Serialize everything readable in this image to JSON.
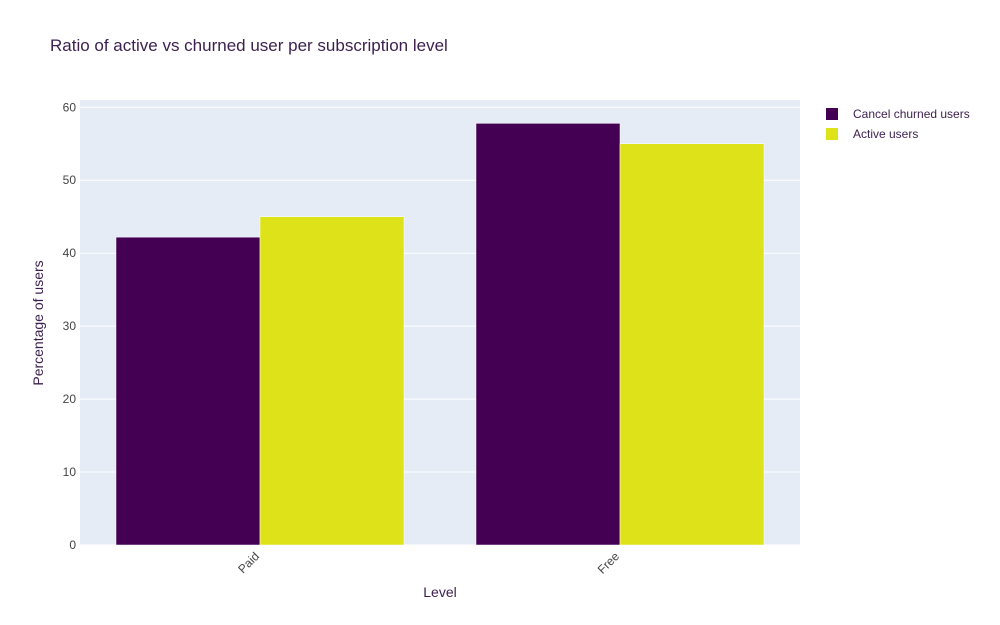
{
  "chart_data": {
    "type": "bar",
    "title": "Ratio of active vs churned user per subscription level",
    "xlabel": "Level",
    "ylabel": "Percentage of users",
    "categories": [
      "Paid",
      "Free"
    ],
    "series": [
      {
        "name": "Cancel churned users",
        "color": "#440154",
        "values": [
          42.2,
          57.8
        ]
      },
      {
        "name": "Active users",
        "color": "#dde318",
        "values": [
          45.0,
          55.0
        ]
      }
    ],
    "ylim": [
      0,
      61
    ],
    "yticks": [
      0,
      10,
      20,
      30,
      40,
      50,
      60
    ],
    "grid": true,
    "legend_position": "top-right",
    "plot_background": "#e5ecf6"
  }
}
